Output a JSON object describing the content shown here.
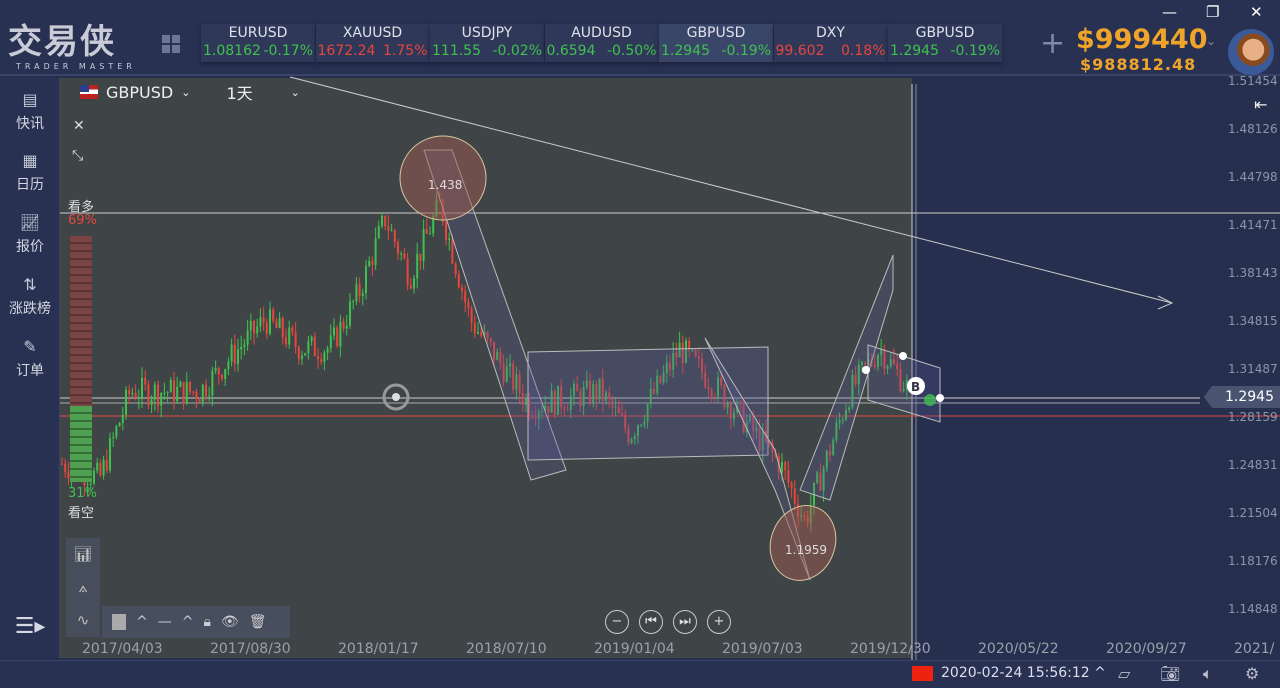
{
  "app": {
    "logo": "交易侠",
    "logo_sub": "TRADER MASTER"
  },
  "tickers": [
    {
      "symbol": "EURUSD",
      "price": "1.08162",
      "change": "-0.17%",
      "price_color": "green",
      "change_color": "green"
    },
    {
      "symbol": "XAUUSD",
      "price": "1672.24",
      "change": "1.75%",
      "price_color": "red",
      "change_color": "red"
    },
    {
      "symbol": "USDJPY",
      "price": "111.55",
      "change": "-0.02%",
      "price_color": "green",
      "change_color": "green"
    },
    {
      "symbol": "AUDUSD",
      "price": "0.6594",
      "change": "-0.50%",
      "price_color": "green",
      "change_color": "green"
    },
    {
      "symbol": "GBPUSD",
      "price": "1.2945",
      "change": "-0.19%",
      "price_color": "green",
      "change_color": "green",
      "selected": true
    },
    {
      "symbol": "DXY",
      "price": "99.602",
      "change": "0.18%",
      "price_color": "red",
      "change_color": "red"
    },
    {
      "symbol": "GBPUSD",
      "price": "1.2945",
      "change": "-0.19%",
      "price_color": "green",
      "change_color": "green"
    }
  ],
  "account": {
    "balance": "$999440",
    "equity": "$988812.48"
  },
  "sidebar": [
    {
      "label": "快讯",
      "icon": "news-icon"
    },
    {
      "label": "日历",
      "icon": "calendar-icon"
    },
    {
      "label": "报价",
      "icon": "quote-chart-icon"
    },
    {
      "label": "涨跌榜",
      "icon": "updown-icon"
    },
    {
      "label": "订单",
      "icon": "order-icon"
    }
  ],
  "chart": {
    "symbol": "GBPUSD",
    "timeframe": "1天",
    "sentiment": {
      "bull_label": "看多",
      "bull_pct": "69%",
      "bear_label": "看空",
      "bear_pct": "31%",
      "bull_value": 69
    },
    "high_label": "1.438",
    "low_label": "1.1959",
    "current_price": "1.2945",
    "price_axis": [
      "1.51454",
      "1.48126",
      "1.44798",
      "1.41471",
      "1.38143",
      "1.34815",
      "1.31487",
      "1.28159",
      "1.24831",
      "1.21504",
      "1.18176",
      "1.14848"
    ],
    "date_axis": [
      "2017/04/03",
      "2017/08/30",
      "2018/01/17",
      "2018/07/10",
      "2019/01/04",
      "2019/07/03",
      "2019/12/30",
      "2020/05/22",
      "2020/09/27",
      "2021/"
    ],
    "colors": {
      "up": "#3fc14f",
      "down": "#e8463d",
      "background": "#3f4547"
    }
  },
  "statusbar": {
    "datetime": "2020-02-24 15:56:12"
  }
}
